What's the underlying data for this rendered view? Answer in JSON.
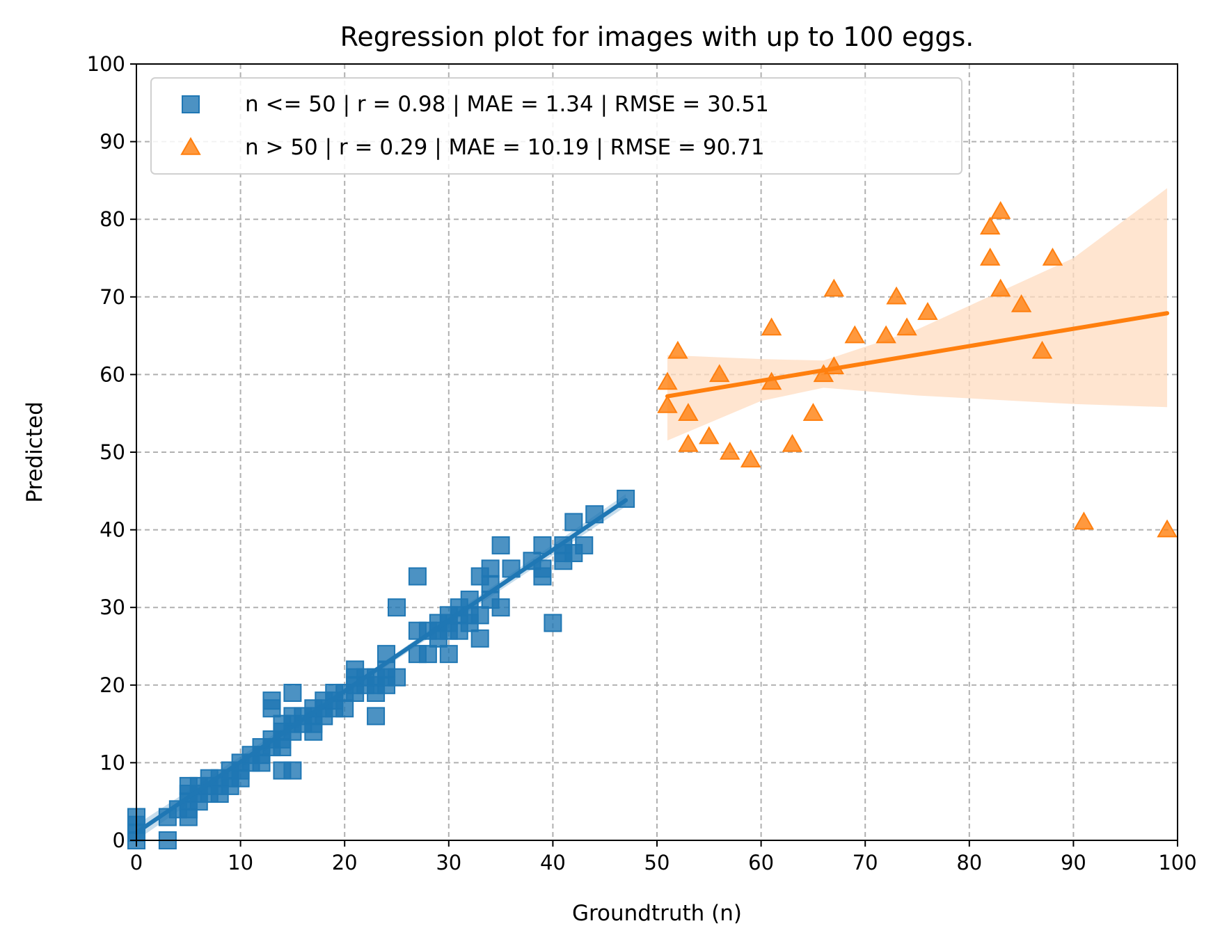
{
  "chart_data": {
    "type": "scatter",
    "title": "Regression plot for images with up to 100 eggs.",
    "xlabel": "Groundtruth (n)",
    "ylabel": "Predicted",
    "xlim": [
      0,
      100
    ],
    "ylim": [
      0,
      100
    ],
    "xticks": [
      "0",
      "10",
      "20",
      "30",
      "40",
      "50",
      "60",
      "70",
      "80",
      "90",
      "100"
    ],
    "yticks": [
      "0",
      "10",
      "20",
      "30",
      "40",
      "50",
      "60",
      "70",
      "80",
      "90",
      "100"
    ],
    "grid": true,
    "legend_position": "upper-left",
    "series": [
      {
        "name": "n <= 50 | r = 0.98 | MAE = 1.34 | RMSE = 30.51",
        "marker": "square",
        "color": "#1f77b4",
        "band_color": "#1f77b4",
        "points": [
          [
            0,
            0
          ],
          [
            0,
            1
          ],
          [
            0,
            2
          ],
          [
            0,
            3
          ],
          [
            3,
            0
          ],
          [
            3,
            3
          ],
          [
            4,
            4
          ],
          [
            5,
            3
          ],
          [
            5,
            4
          ],
          [
            5,
            5
          ],
          [
            5,
            6
          ],
          [
            5,
            7
          ],
          [
            6,
            5
          ],
          [
            6,
            6
          ],
          [
            6,
            7
          ],
          [
            7,
            6
          ],
          [
            7,
            7
          ],
          [
            7,
            8
          ],
          [
            8,
            6
          ],
          [
            8,
            7
          ],
          [
            8,
            8
          ],
          [
            9,
            7
          ],
          [
            9,
            8
          ],
          [
            9,
            9
          ],
          [
            10,
            8
          ],
          [
            10,
            9
          ],
          [
            10,
            10
          ],
          [
            11,
            10
          ],
          [
            11,
            11
          ],
          [
            12,
            10
          ],
          [
            12,
            11
          ],
          [
            12,
            12
          ],
          [
            13,
            12
          ],
          [
            13,
            13
          ],
          [
            13,
            17
          ],
          [
            13,
            18
          ],
          [
            14,
            9
          ],
          [
            14,
            12
          ],
          [
            14,
            13
          ],
          [
            14,
            14
          ],
          [
            14,
            15
          ],
          [
            15,
            9
          ],
          [
            15,
            14
          ],
          [
            15,
            15
          ],
          [
            15,
            16
          ],
          [
            15,
            19
          ],
          [
            16,
            15
          ],
          [
            16,
            16
          ],
          [
            17,
            14
          ],
          [
            17,
            15
          ],
          [
            17,
            16
          ],
          [
            17,
            17
          ],
          [
            18,
            16
          ],
          [
            18,
            17
          ],
          [
            18,
            18
          ],
          [
            19,
            17
          ],
          [
            19,
            18
          ],
          [
            19,
            19
          ],
          [
            20,
            17
          ],
          [
            20,
            19
          ],
          [
            21,
            19
          ],
          [
            21,
            20
          ],
          [
            21,
            21
          ],
          [
            21,
            22
          ],
          [
            22,
            20
          ],
          [
            22,
            21
          ],
          [
            23,
            16
          ],
          [
            23,
            19
          ],
          [
            23,
            20
          ],
          [
            23,
            21
          ],
          [
            24,
            20
          ],
          [
            24,
            21
          ],
          [
            24,
            22
          ],
          [
            24,
            24
          ],
          [
            25,
            21
          ],
          [
            25,
            30
          ],
          [
            27,
            24
          ],
          [
            27,
            27
          ],
          [
            27,
            34
          ],
          [
            28,
            24
          ],
          [
            28,
            27
          ],
          [
            29,
            26
          ],
          [
            29,
            27
          ],
          [
            29,
            28
          ],
          [
            30,
            24
          ],
          [
            30,
            27
          ],
          [
            30,
            28
          ],
          [
            30,
            29
          ],
          [
            31,
            27
          ],
          [
            31,
            29
          ],
          [
            31,
            30
          ],
          [
            32,
            28
          ],
          [
            32,
            29
          ],
          [
            32,
            31
          ],
          [
            33,
            26
          ],
          [
            33,
            29
          ],
          [
            33,
            34
          ],
          [
            34,
            31
          ],
          [
            34,
            33
          ],
          [
            34,
            35
          ],
          [
            35,
            30
          ],
          [
            35,
            38
          ],
          [
            36,
            35
          ],
          [
            38,
            36
          ],
          [
            39,
            34
          ],
          [
            39,
            35
          ],
          [
            39,
            38
          ],
          [
            40,
            28
          ],
          [
            41,
            36
          ],
          [
            41,
            37
          ],
          [
            41,
            38
          ],
          [
            42,
            37
          ],
          [
            42,
            41
          ],
          [
            43,
            38
          ],
          [
            44,
            42
          ],
          [
            47,
            44
          ]
        ],
        "fit_line": {
          "x": [
            0,
            47
          ],
          "y": [
            1.0,
            43.8
          ]
        },
        "ci_band": {
          "x": [
            0,
            23,
            47
          ],
          "lower": [
            0.0,
            21.5,
            43.0
          ],
          "upper": [
            2.0,
            22.3,
            44.6
          ]
        }
      },
      {
        "name": "n > 50 | r = 0.29 | MAE = 10.19 | RMSE = 90.71",
        "marker": "triangle",
        "color": "#ff7f0e",
        "band_color": "#ffdcc0",
        "points": [
          [
            51,
            56
          ],
          [
            51,
            59
          ],
          [
            52,
            63
          ],
          [
            53,
            51
          ],
          [
            53,
            55
          ],
          [
            55,
            52
          ],
          [
            56,
            60
          ],
          [
            57,
            50
          ],
          [
            59,
            49
          ],
          [
            61,
            59
          ],
          [
            61,
            66
          ],
          [
            63,
            51
          ],
          [
            65,
            55
          ],
          [
            66,
            60
          ],
          [
            67,
            61
          ],
          [
            67,
            71
          ],
          [
            69,
            65
          ],
          [
            72,
            65
          ],
          [
            73,
            70
          ],
          [
            74,
            66
          ],
          [
            76,
            68
          ],
          [
            82,
            75
          ],
          [
            82,
            79
          ],
          [
            83,
            71
          ],
          [
            83,
            81
          ],
          [
            85,
            69
          ],
          [
            87,
            63
          ],
          [
            88,
            75
          ],
          [
            91,
            41
          ],
          [
            99,
            40
          ]
        ],
        "fit_line": {
          "x": [
            51,
            99
          ],
          "y": [
            57.2,
            67.9
          ]
        },
        "ci_band": {
          "x": [
            51,
            60,
            66,
            75,
            90,
            99
          ],
          "lower": [
            51.5,
            56.6,
            58.3,
            57.3,
            56.2,
            55.8
          ],
          "upper": [
            62.5,
            62.0,
            61.8,
            65.8,
            75.0,
            84.0
          ]
        }
      }
    ]
  }
}
